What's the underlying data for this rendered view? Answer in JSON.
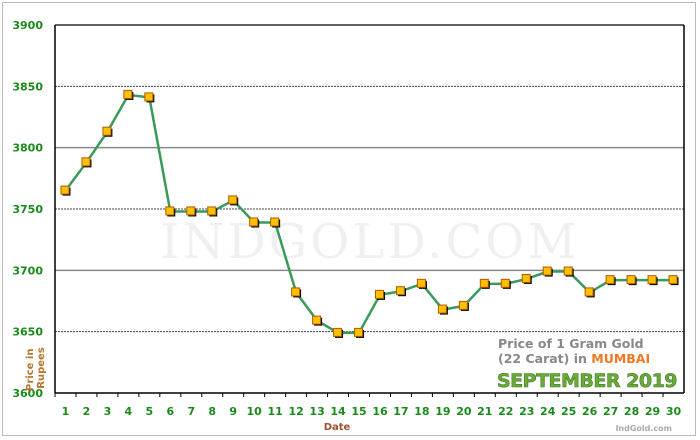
{
  "chart_data": {
    "type": "line",
    "title": "",
    "xlabel": "Date",
    "ylabel": "Price in Rupees",
    "ylim": [
      3600,
      3900
    ],
    "yticks": [
      3600,
      3650,
      3700,
      3750,
      3800,
      3850,
      3900
    ],
    "grid": true,
    "x": [
      1,
      2,
      3,
      4,
      5,
      6,
      7,
      8,
      9,
      10,
      11,
      12,
      13,
      14,
      15,
      16,
      17,
      18,
      19,
      20,
      21,
      22,
      23,
      24,
      25,
      26,
      27,
      28,
      29,
      30
    ],
    "values": [
      3765,
      3788,
      3813,
      3843,
      3841,
      3748,
      3748,
      3748,
      3757,
      3739,
      3739,
      3682,
      3659,
      3649,
      3649,
      3680,
      3683,
      3689,
      3668,
      3671,
      3689,
      3689,
      3693,
      3699,
      3699,
      3682,
      3692,
      3692,
      3692,
      3692
    ],
    "line_color": "#3a9a5a",
    "marker_color": "#ffc000",
    "annotation": {
      "line1": "Price of 1 Gram Gold",
      "line2_prefix": "(22 Carat) in ",
      "city": "MUMBAI",
      "month": "SEPTEMBER 2019"
    },
    "watermark": "INDGOLD.COM",
    "credit": "IndGold.com"
  }
}
